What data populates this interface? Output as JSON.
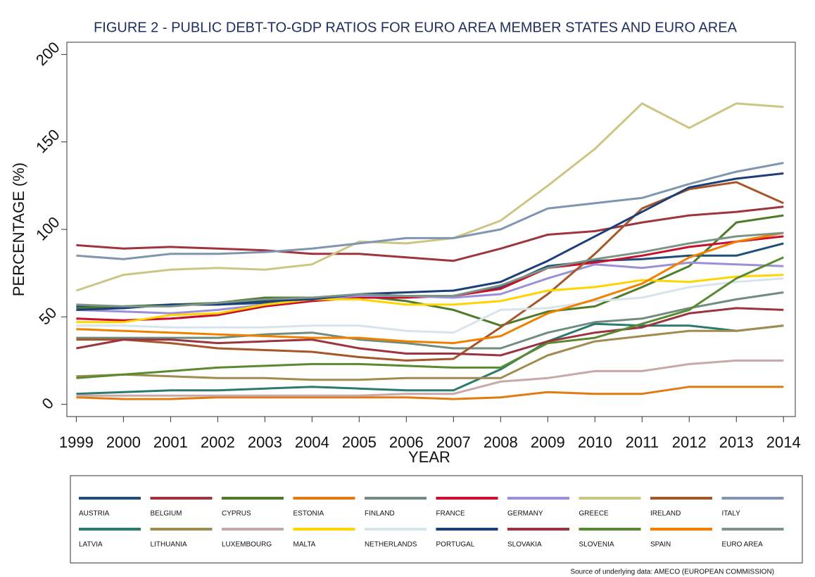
{
  "chart_data": {
    "type": "line",
    "title": "FIGURE 2 - PUBLIC DEBT-TO-GDP RATIOS FOR EURO AREA MEMBER STATES AND EURO AREA",
    "xlabel": "YEAR",
    "ylabel": "PERCENTAGE (%)",
    "source": "Source of underlying data: AMECO (EUROPEAN COMMISSION)",
    "x": [
      1999,
      2000,
      2001,
      2002,
      2003,
      2004,
      2005,
      2006,
      2007,
      2008,
      2009,
      2010,
      2011,
      2012,
      2013,
      2014
    ],
    "xlim": [
      1998.8,
      2014.25
    ],
    "xticks": [
      1999,
      2000,
      2001,
      2002,
      2003,
      2004,
      2005,
      2006,
      2007,
      2008,
      2009,
      2010,
      2011,
      2012,
      2013,
      2014
    ],
    "ylim": [
      -7,
      207
    ],
    "yticks": [
      0,
      50,
      100,
      150,
      200
    ],
    "series": [
      {
        "name": "AUSTRIA",
        "color": "#1f4e79",
        "values": [
          56,
          55,
          57,
          57,
          58,
          60,
          61,
          62,
          62,
          67,
          79,
          82,
          83,
          85,
          85,
          92
        ]
      },
      {
        "name": "BELGIUM",
        "color": "#a0343c",
        "values": [
          91,
          89,
          90,
          89,
          88,
          86,
          86,
          84,
          82,
          89,
          97,
          99,
          104,
          108,
          110,
          113
        ]
      },
      {
        "name": "CYPRUS",
        "color": "#4e7a2a",
        "values": [
          55,
          56,
          57,
          58,
          61,
          61,
          62,
          59,
          54,
          45,
          53,
          56,
          67,
          79,
          104,
          108
        ]
      },
      {
        "name": "ESTONIA",
        "color": "#e07b12",
        "values": [
          4,
          3,
          3,
          4,
          4,
          4,
          4,
          4,
          3,
          4,
          7,
          6,
          6,
          10,
          10,
          10
        ]
      },
      {
        "name": "FINLAND",
        "color": "#6f8c7f",
        "values": [
          38,
          38,
          38,
          38,
          40,
          41,
          37,
          35,
          32,
          32,
          41,
          47,
          49,
          55,
          60,
          64
        ]
      },
      {
        "name": "FRANCE",
        "color": "#c8102e",
        "values": [
          49,
          48,
          49,
          51,
          56,
          59,
          61,
          61,
          62,
          66,
          78,
          81,
          85,
          90,
          93,
          96
        ]
      },
      {
        "name": "GERMANY",
        "color": "#9a8fd8",
        "values": [
          54,
          53,
          52,
          54,
          57,
          60,
          62,
          62,
          61,
          63,
          72,
          80,
          78,
          81,
          80,
          79
        ]
      },
      {
        "name": "GREECE",
        "color": "#cdc584",
        "values": [
          65,
          74,
          77,
          78,
          77,
          80,
          93,
          92,
          95,
          105,
          125,
          146,
          172,
          158,
          172,
          170
        ]
      },
      {
        "name": "IRELAND",
        "color": "#a65628",
        "values": [
          37,
          37,
          35,
          32,
          31,
          30,
          27,
          25,
          26,
          44,
          63,
          86,
          112,
          123,
          127,
          115
        ]
      },
      {
        "name": "ITALY",
        "color": "#8096b0",
        "values": [
          85,
          83,
          86,
          86,
          87,
          89,
          92,
          95,
          95,
          100,
          112,
          115,
          118,
          126,
          133,
          138
        ]
      },
      {
        "name": "LATVIA",
        "color": "#2a7a6e",
        "values": [
          6,
          7,
          8,
          8,
          9,
          10,
          9,
          8,
          8,
          20,
          36,
          46,
          45,
          45,
          42,
          45
        ]
      },
      {
        "name": "LITHUANIA",
        "color": "#a08c50",
        "values": [
          16,
          17,
          16,
          15,
          15,
          14,
          14,
          15,
          15,
          15,
          28,
          36,
          39,
          42,
          42,
          45
        ]
      },
      {
        "name": "LUXEMBOURG",
        "color": "#c8a8a8",
        "values": [
          5,
          5,
          5,
          5,
          5,
          5,
          5,
          6,
          6,
          13,
          15,
          19,
          19,
          23,
          25,
          25
        ]
      },
      {
        "name": "MALTA",
        "color": "#ffd400",
        "values": [
          47,
          47,
          51,
          52,
          57,
          60,
          60,
          57,
          57,
          59,
          65,
          67,
          71,
          70,
          73,
          74
        ]
      },
      {
        "name": "NETHERLANDS",
        "color": "#d8e4ec",
        "values": [
          45,
          45,
          44,
          44,
          44,
          45,
          45,
          42,
          41,
          54,
          55,
          59,
          61,
          67,
          70,
          72
        ]
      },
      {
        "name": "PORTUGAL",
        "color": "#1c3f7a",
        "values": [
          54,
          55,
          57,
          57,
          59,
          60,
          63,
          64,
          65,
          70,
          82,
          96,
          110,
          124,
          129,
          132
        ]
      },
      {
        "name": "SLOVAKIA",
        "color": "#9a3440",
        "values": [
          32,
          37,
          37,
          35,
          36,
          37,
          32,
          29,
          29,
          28,
          36,
          41,
          44,
          52,
          55,
          54
        ]
      },
      {
        "name": "SLOVENIA",
        "color": "#5a8a30",
        "values": [
          15,
          17,
          19,
          21,
          22,
          23,
          23,
          22,
          21,
          21,
          35,
          38,
          46,
          54,
          72,
          84
        ]
      },
      {
        "name": "SPAIN",
        "color": "#f08000",
        "values": [
          43,
          42,
          41,
          40,
          39,
          38,
          38,
          36,
          35,
          39,
          52,
          60,
          69,
          84,
          93,
          98
        ]
      },
      {
        "name": "EURO AREA",
        "color": "#7c9486",
        "values": [
          57,
          56,
          56,
          58,
          60,
          61,
          63,
          62,
          62,
          68,
          78,
          83,
          87,
          92,
          96,
          98
        ]
      }
    ]
  }
}
